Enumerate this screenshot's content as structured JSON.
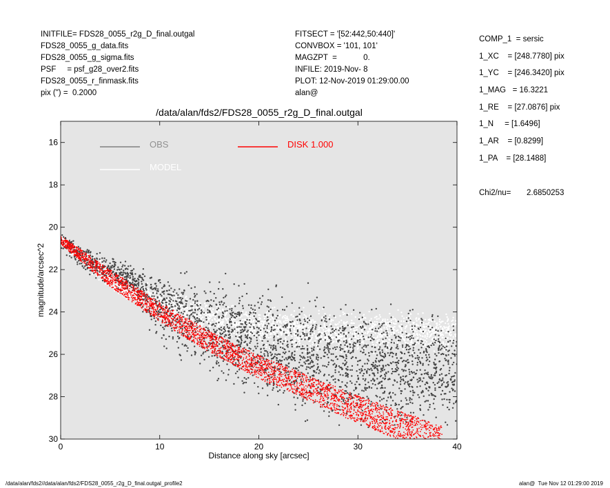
{
  "header": {
    "left": [
      "INITFILE= FDS28_0055_r2g_D_final.outgal",
      "FDS28_0055_g_data.fits",
      "FDS28_0055_g_sigma.fits",
      "PSF     = psf_g28_over2.fits",
      "FDS28_0055_r_finmask.fits",
      "pix (\") =  0.2000"
    ],
    "middle": [
      "FITSECT = '[52:442,50:440]'",
      "CONVBOX = '101, 101'",
      "MAGZPT  =            0.",
      "INFILE: 2019-Nov- 8",
      "PLOT: 12-Nov-2019 01:29:00.00",
      "alan@"
    ]
  },
  "components": [
    "COMP_1  = sersic",
    "1_XC    = [248.7780] pix",
    "1_YC    = [246.3420] pix",
    "1_MAG   = 16.3221",
    "1_RE    = [27.0876] pix",
    "1_N     = [1.6496]",
    "1_AR    = [0.8299]",
    "1_PA    = [28.1488]"
  ],
  "chi2": {
    "label": "Chi2/nu=",
    "value": "2.6850253"
  },
  "footer": {
    "left": "/data/alan/fds2//data/alan/fds2/FDS28_0055_r2g_D_final.outgal_profile2",
    "right": "alan@  Tue Nov 12 01:29:00 2019"
  },
  "chart_data": {
    "type": "scatter",
    "title": "/data/alan/fds2/FDS28_0055_r2g_D_final.outgal",
    "xlabel": "Distance along sky [arcsec]",
    "ylabel": "magnitude/arcsec^2",
    "xlim": [
      0,
      40
    ],
    "ylim": [
      30,
      15
    ],
    "y_inverted": true,
    "x_ticks": [
      "0",
      "10",
      "20",
      "30",
      "40"
    ],
    "y_ticks": [
      "16",
      "18",
      "20",
      "22",
      "24",
      "26",
      "28",
      "30"
    ],
    "background": "#e5e5e5",
    "legend": [
      {
        "name": "OBS",
        "color": "#808080"
      },
      {
        "name": "MODEL",
        "color": "#ffffff"
      },
      {
        "name": "DISK  1.000",
        "color": "#ff0000"
      }
    ],
    "series": [
      {
        "name": "OBS",
        "color": "#444444",
        "trend": {
          "x": [
            0,
            2,
            5,
            7,
            8,
            10,
            15,
            20,
            25,
            30,
            35,
            40
          ],
          "y": [
            20.6,
            21.3,
            22.0,
            22.3,
            22.8,
            23.5,
            24.6,
            25.3,
            25.8,
            26.2,
            26.4,
            26.5
          ]
        },
        "scatter_mag": [
          0.3,
          0.4,
          0.5,
          0.5,
          0.8,
          1.2,
          1.5,
          1.8,
          1.9,
          2.0,
          2.0,
          2.0
        ]
      },
      {
        "name": "MODEL",
        "color": "#ffffff",
        "trend": {
          "x": [
            0,
            2,
            5,
            10,
            15,
            20,
            25,
            30,
            35,
            40
          ],
          "y": [
            20.6,
            21.3,
            22.4,
            23.6,
            24.3,
            24.7,
            24.9,
            25.0,
            25.0,
            25.0
          ]
        },
        "scatter_mag": [
          0.2,
          0.3,
          0.4,
          0.5,
          0.6,
          0.6,
          0.7,
          0.7,
          0.7,
          0.7
        ]
      },
      {
        "name": "DISK  1.000",
        "color": "#ff0000",
        "trend": {
          "x": [
            0,
            5,
            10,
            15,
            20,
            25,
            30,
            35,
            38
          ],
          "y": [
            20.6,
            22.4,
            24.0,
            25.4,
            26.6,
            27.6,
            28.6,
            29.5,
            30.0
          ]
        },
        "band_half_width": [
          0.2,
          0.4,
          0.45,
          0.5,
          0.55,
          0.6,
          0.65,
          0.7,
          0.7
        ]
      }
    ]
  }
}
